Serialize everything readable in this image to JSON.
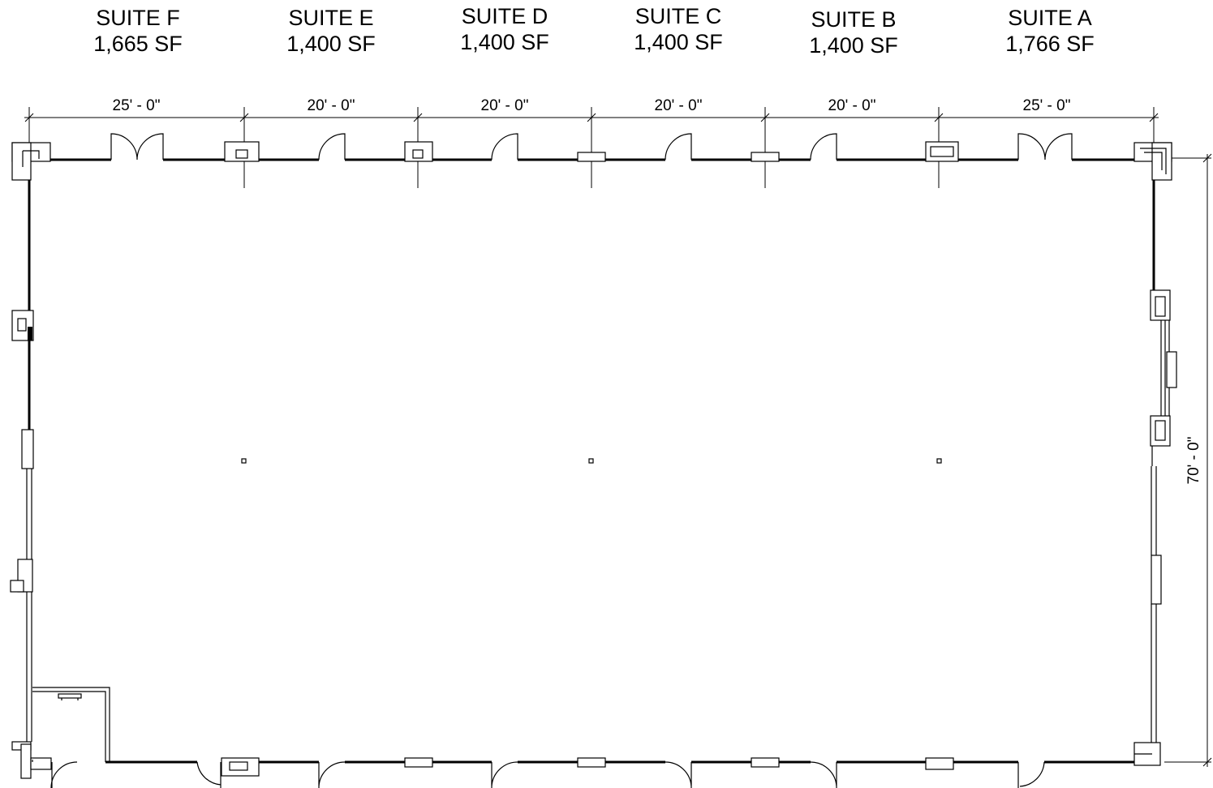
{
  "suites": [
    {
      "name": "SUITE F",
      "area": "1,665 SF"
    },
    {
      "name": "SUITE E",
      "area": "1,400 SF"
    },
    {
      "name": "SUITE D",
      "area": "1,400 SF"
    },
    {
      "name": "SUITE C",
      "area": "1,400 SF"
    },
    {
      "name": "SUITE B",
      "area": "1,400 SF"
    },
    {
      "name": "SUITE A",
      "area": "1,766 SF"
    }
  ],
  "dimensions": {
    "top": [
      "25' - 0\"",
      "20' - 0\"",
      "20' - 0\"",
      "20' - 0\"",
      "20' - 0\"",
      "25' - 0\""
    ],
    "right": "70' - 0\""
  }
}
